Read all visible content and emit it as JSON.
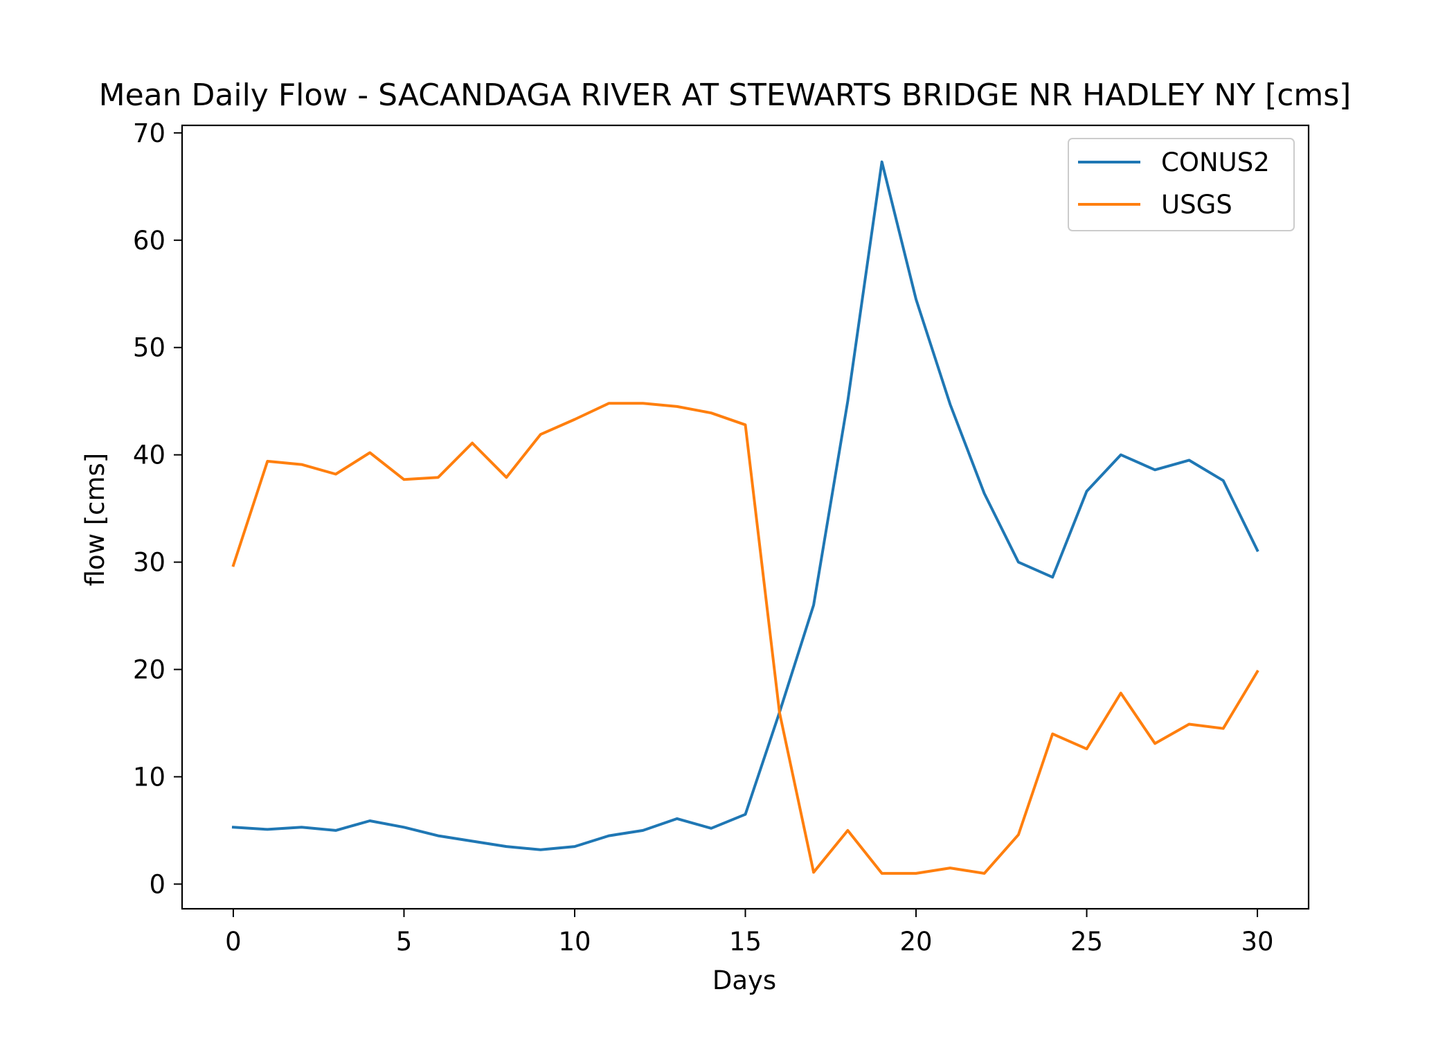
{
  "chart_data": {
    "type": "line",
    "title": "Mean Daily Flow - SACANDAGA RIVER AT STEWARTS BRIDGE NR HADLEY NY [cms]",
    "xlabel": "Days",
    "ylabel": "flow [cms]",
    "xlim": [
      -1.5,
      31.5
    ],
    "ylim": [
      -2.3,
      70.7
    ],
    "xticks": [
      0,
      5,
      10,
      15,
      20,
      25,
      30
    ],
    "yticks": [
      0,
      10,
      20,
      30,
      40,
      50,
      60,
      70
    ],
    "grid": false,
    "legend_position": "upper right",
    "x": [
      0,
      1,
      2,
      3,
      4,
      5,
      6,
      7,
      8,
      9,
      10,
      11,
      12,
      13,
      14,
      15,
      16,
      17,
      18,
      19,
      20,
      21,
      22,
      23,
      24,
      25,
      26,
      27,
      28,
      29,
      30
    ],
    "series": [
      {
        "name": "CONUS2",
        "color": "#1f77b4",
        "values": [
          5.3,
          5.1,
          5.3,
          5.0,
          5.9,
          5.3,
          4.5,
          4.0,
          3.5,
          3.2,
          3.5,
          4.5,
          5.0,
          6.1,
          5.2,
          6.5,
          16.0,
          26.0,
          45.0,
          67.3,
          54.5,
          44.7,
          36.4,
          30.0,
          28.6,
          36.6,
          40.0,
          38.6,
          39.5,
          37.6,
          31.1
        ]
      },
      {
        "name": "USGS",
        "color": "#ff7f0e",
        "values": [
          29.7,
          39.4,
          39.1,
          38.2,
          40.2,
          37.7,
          37.9,
          41.1,
          37.9,
          41.9,
          43.3,
          44.8,
          44.8,
          44.5,
          43.9,
          42.8,
          16.0,
          1.1,
          5.0,
          1.0,
          1.0,
          1.5,
          1.0,
          4.6,
          14.0,
          12.6,
          17.8,
          13.1,
          14.9,
          14.5,
          19.8
        ]
      }
    ]
  }
}
